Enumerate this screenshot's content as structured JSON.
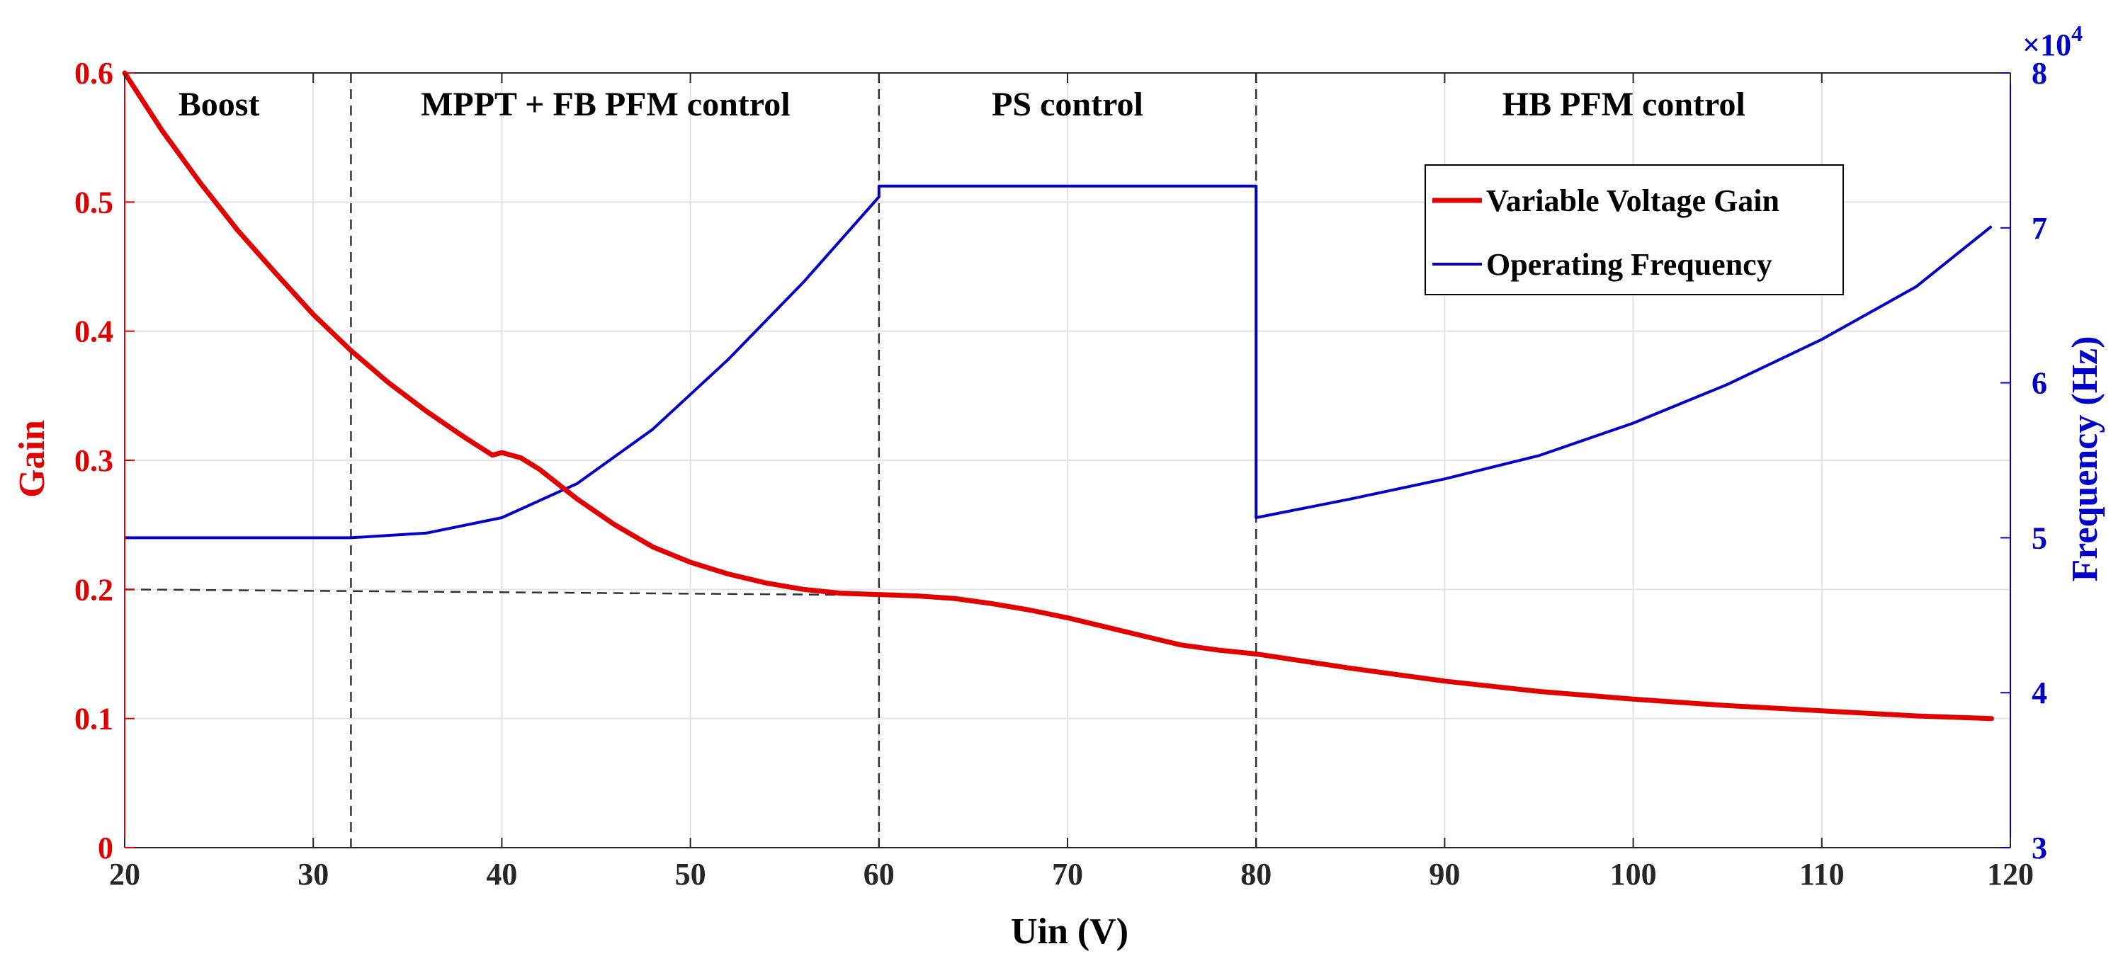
{
  "chart_data": {
    "type": "line",
    "title": "",
    "xlabel": "Uin (V)",
    "ylabel_left": "Gain",
    "ylabel_right": "Frequency (Hz)",
    "right_axis_multiplier": "×10",
    "right_axis_exponent": "4",
    "xlim": [
      20,
      120
    ],
    "ylim_left": [
      0,
      0.6
    ],
    "ylim_right": [
      30000,
      80000
    ],
    "x_ticks": [
      20,
      30,
      40,
      50,
      60,
      70,
      80,
      90,
      100,
      110,
      120
    ],
    "x_tick_labels": [
      "20",
      "30",
      "40",
      "50",
      "60",
      "70",
      "80",
      "90",
      "100",
      "110",
      "120"
    ],
    "y_left_ticks": [
      0,
      0.1,
      0.2,
      0.3,
      0.4,
      0.5,
      0.6
    ],
    "y_left_tick_labels": [
      "0",
      "0.1",
      "0.2",
      "0.3",
      "0.4",
      "0.5",
      "0.6"
    ],
    "y_right_ticks": [
      30000,
      40000,
      50000,
      60000,
      70000,
      80000
    ],
    "y_right_tick_labels": [
      "3",
      "4",
      "5",
      "6",
      "7",
      "8"
    ],
    "grid": true,
    "legend_position": "top-right",
    "colors": {
      "gain": "#e00000",
      "frequency": "#0000c8",
      "left_axis": "#e00000",
      "right_axis": "#0000c8",
      "guide": "#333333"
    },
    "regions": [
      {
        "label": "Boost",
        "x": 25
      },
      {
        "label": "MPPT + FB PFM control",
        "x": 45.5
      },
      {
        "label": "PS control",
        "x": 70
      },
      {
        "label": "HB PFM control",
        "x": 99.5
      }
    ],
    "region_boundaries": [
      32,
      60,
      80
    ],
    "reference_line": {
      "y": 0.2,
      "x_from": 20,
      "x_to": 60
    },
    "series": [
      {
        "name": "Variable Voltage Gain",
        "axis": "left",
        "x": [
          20,
          22,
          24,
          26,
          28,
          30,
          32,
          34,
          36,
          38,
          39.5,
          40,
          41,
          42,
          44,
          46,
          48,
          50,
          52,
          54,
          56,
          58,
          60,
          62,
          64,
          66,
          68,
          70,
          72,
          74,
          76,
          78,
          80,
          85,
          90,
          95,
          100,
          105,
          110,
          115,
          119
        ],
        "values": [
          0.6,
          0.555,
          0.515,
          0.478,
          0.445,
          0.413,
          0.385,
          0.36,
          0.338,
          0.318,
          0.304,
          0.306,
          0.302,
          0.293,
          0.27,
          0.25,
          0.233,
          0.221,
          0.212,
          0.205,
          0.2,
          0.197,
          0.196,
          0.195,
          0.193,
          0.189,
          0.184,
          0.178,
          0.171,
          0.164,
          0.157,
          0.153,
          0.15,
          0.139,
          0.129,
          0.121,
          0.115,
          0.11,
          0.106,
          0.102,
          0.1
        ]
      },
      {
        "name": "Operating Frequency",
        "axis": "right",
        "x": [
          20,
          32,
          36,
          40,
          44,
          48,
          52,
          56,
          60,
          60,
          79.8,
          80,
          80,
          85,
          90,
          95,
          100,
          105,
          110,
          115,
          119
        ],
        "values": [
          50000,
          50000,
          50300,
          51300,
          53500,
          57000,
          61500,
          66500,
          72000,
          72700,
          72700,
          72700,
          51300,
          52500,
          53800,
          55300,
          57400,
          59900,
          62800,
          66200,
          70100
        ]
      }
    ]
  }
}
